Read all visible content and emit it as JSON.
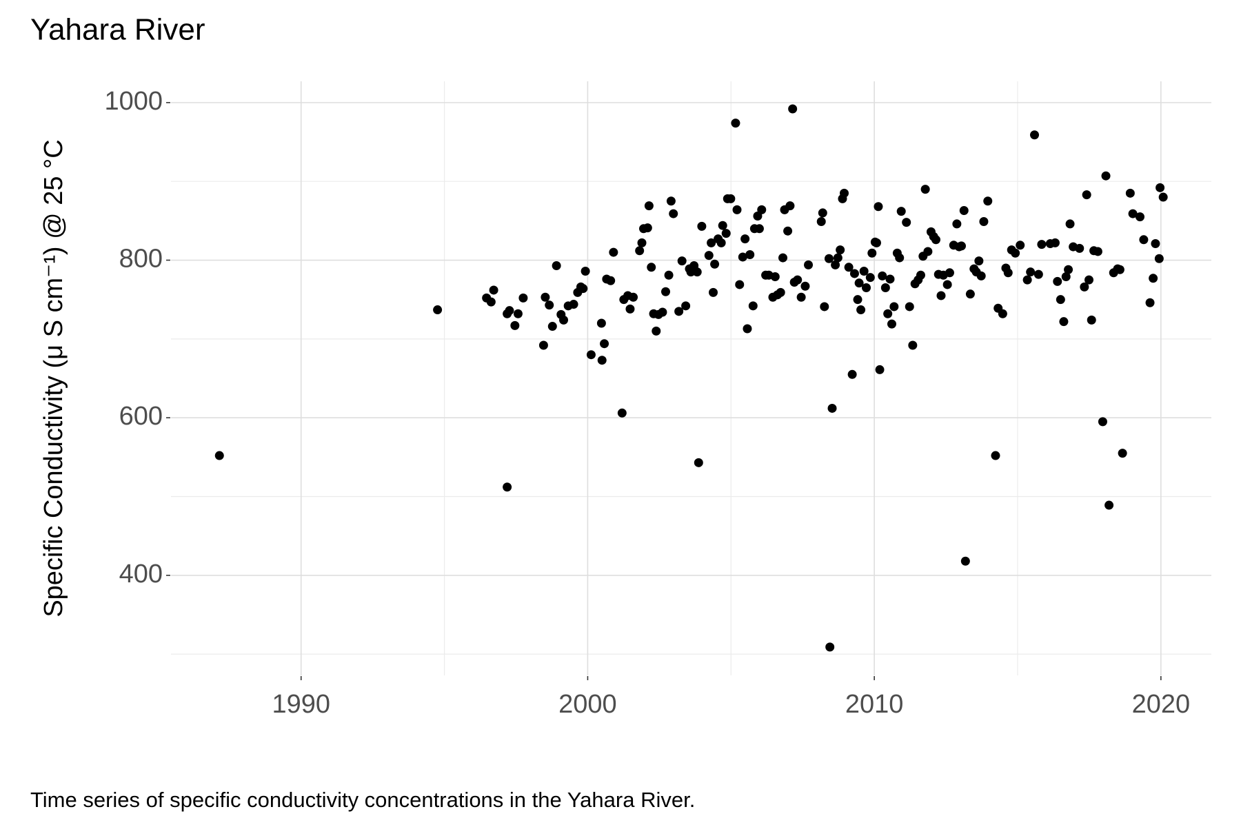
{
  "chart_data": {
    "type": "scatter",
    "title": "Yahara River",
    "y_label": "Specific Conductivity (μ S cm⁻¹) @ 25 °C",
    "caption": "Time series of specific conductivity concentrations in the Yahara River.",
    "color": "#000000",
    "grid": true,
    "xlim": [
      1985.46,
      2021.76
    ],
    "xticks": [
      1990,
      2000,
      2010,
      2020
    ],
    "minor_xticks": [
      1995,
      2005,
      2015
    ],
    "ylim": [
      273,
      1027
    ],
    "yticks": [
      400,
      600,
      800,
      1000
    ],
    "minor_yticks": [
      300,
      500,
      700,
      900
    ],
    "x": [
      1987.15,
      1994.76,
      1996.47,
      1996.63,
      1996.72,
      1997.19,
      1997.19,
      1997.27,
      1997.46,
      1997.57,
      1997.75,
      1998.46,
      1998.52,
      1998.66,
      1998.77,
      1998.91,
      1999.07,
      1999.16,
      1999.32,
      1999.51,
      1999.65,
      1999.76,
      1999.84,
      1999.92,
      2000.12,
      2000.48,
      2000.5,
      2000.58,
      2000.66,
      2000.8,
      2000.9,
      2001.2,
      2001.26,
      2001.4,
      2001.48,
      2001.59,
      2001.81,
      2001.89,
      2001.95,
      2002.09,
      2002.14,
      2002.22,
      2002.3,
      2002.39,
      2002.47,
      2002.61,
      2002.72,
      2002.83,
      2002.91,
      2002.99,
      2003.18,
      2003.29,
      2003.42,
      2003.55,
      2003.6,
      2003.71,
      2003.82,
      2003.87,
      2003.98,
      2004.23,
      2004.31,
      2004.38,
      2004.43,
      2004.55,
      2004.66,
      2004.71,
      2004.83,
      2004.88,
      2004.99,
      2005.16,
      2005.21,
      2005.3,
      2005.41,
      2005.49,
      2005.57,
      2005.66,
      2005.77,
      2005.82,
      2005.93,
      2005.99,
      2006.07,
      2006.21,
      2006.32,
      2006.46,
      2006.54,
      2006.62,
      2006.73,
      2006.81,
      2006.87,
      2006.98,
      2007.06,
      2007.15,
      2007.21,
      2007.32,
      2007.45,
      2007.59,
      2007.7,
      2008.15,
      2008.2,
      2008.26,
      2008.42,
      2008.45,
      2008.53,
      2008.64,
      2008.73,
      2008.81,
      2008.89,
      2008.95,
      2009.11,
      2009.23,
      2009.31,
      2009.42,
      2009.47,
      2009.53,
      2009.64,
      2009.72,
      2009.86,
      2009.92,
      2010.03,
      2010.08,
      2010.14,
      2010.19,
      2010.28,
      2010.39,
      2010.47,
      2010.55,
      2010.61,
      2010.69,
      2010.8,
      2010.88,
      2010.94,
      2011.12,
      2011.23,
      2011.34,
      2011.42,
      2011.53,
      2011.62,
      2011.7,
      2011.78,
      2011.87,
      2011.98,
      2012.07,
      2012.15,
      2012.24,
      2012.33,
      2012.41,
      2012.55,
      2012.63,
      2012.77,
      2012.88,
      2012.96,
      2013.04,
      2013.13,
      2013.18,
      2013.35,
      2013.48,
      2013.56,
      2013.65,
      2013.73,
      2013.82,
      2013.96,
      2014.23,
      2014.32,
      2014.48,
      2014.59,
      2014.67,
      2014.79,
      2014.92,
      2015.09,
      2015.34,
      2015.45,
      2015.59,
      2015.73,
      2015.84,
      2016.14,
      2016.31,
      2016.39,
      2016.5,
      2016.61,
      2016.69,
      2016.77,
      2016.83,
      2016.94,
      2017.16,
      2017.33,
      2017.41,
      2017.49,
      2017.58,
      2017.66,
      2017.8,
      2017.97,
      2018.08,
      2018.19,
      2018.35,
      2018.49,
      2018.57,
      2018.66,
      2018.93,
      2019.02,
      2019.27,
      2019.4,
      2019.62,
      2019.73,
      2019.81,
      2019.94,
      2019.97,
      2020.08
    ],
    "values": [
      552,
      737,
      752,
      747,
      762,
      732,
      512,
      736,
      717,
      732,
      752,
      692,
      753,
      743,
      716,
      793,
      731,
      724,
      742,
      744,
      759,
      766,
      764,
      786,
      680,
      720,
      673,
      694,
      776,
      774,
      810,
      606,
      750,
      755,
      738,
      753,
      812,
      822,
      840,
      841,
      869,
      791,
      732,
      710,
      731,
      734,
      760,
      781,
      875,
      859,
      735,
      799,
      742,
      789,
      785,
      793,
      785,
      543,
      843,
      806,
      822,
      759,
      795,
      827,
      822,
      844,
      834,
      878,
      878,
      974,
      864,
      769,
      804,
      827,
      713,
      807,
      742,
      840,
      856,
      840,
      864,
      781,
      781,
      753,
      779,
      756,
      759,
      803,
      864,
      837,
      869,
      992,
      772,
      775,
      753,
      767,
      794,
      849,
      860,
      741,
      802,
      309,
      612,
      794,
      803,
      813,
      878,
      885,
      791,
      655,
      783,
      750,
      771,
      737,
      786,
      765,
      778,
      809,
      823,
      822,
      868,
      661,
      780,
      765,
      732,
      776,
      719,
      741,
      809,
      803,
      862,
      848,
      741,
      692,
      770,
      775,
      781,
      805,
      890,
      811,
      836,
      830,
      826,
      782,
      755,
      781,
      769,
      784,
      819,
      846,
      817,
      818,
      863,
      418,
      757,
      789,
      785,
      799,
      780,
      849,
      875,
      552,
      739,
      732,
      790,
      784,
      813,
      809,
      819,
      775,
      785,
      959,
      782,
      820,
      821,
      822,
      773,
      750,
      722,
      779,
      788,
      846,
      817,
      815,
      766,
      883,
      775,
      724,
      812,
      811,
      595,
      907,
      489,
      784,
      789,
      788,
      555,
      885,
      859,
      855,
      826,
      746,
      777,
      821,
      802,
      892,
      880
    ]
  }
}
